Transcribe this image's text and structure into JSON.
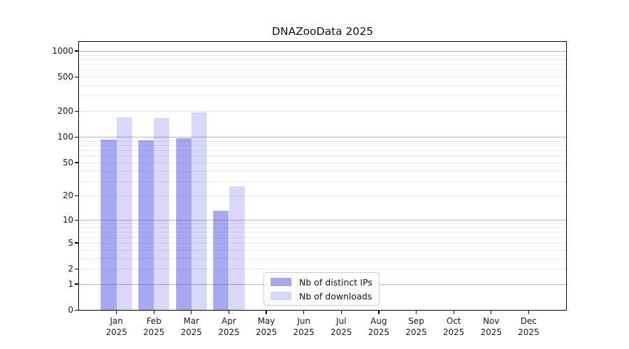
{
  "header": {
    "title": "DNAZooData 2025"
  },
  "chart_data": {
    "type": "bar",
    "title": "DNAZooData 2025",
    "categories": [
      "Jan 2025",
      "Feb 2025",
      "Mar 2025",
      "Apr 2025",
      "May 2025",
      "Jun 2025",
      "Jul 2025",
      "Aug 2025",
      "Sep 2025",
      "Oct 2025",
      "Nov 2025",
      "Dec 2025"
    ],
    "series": [
      {
        "name": "Nb of distinct IPs",
        "base_color": "#4d51e2",
        "alpha": 0.5,
        "values": [
          93,
          91,
          96,
          13,
          null,
          null,
          null,
          null,
          null,
          null,
          null,
          null
        ]
      },
      {
        "name": "Nb of downloads",
        "base_color": "#4d51e2",
        "alpha": 0.22,
        "values": [
          170,
          165,
          193,
          26,
          null,
          null,
          null,
          null,
          null,
          null,
          null,
          null
        ]
      }
    ],
    "yscale": "log1p",
    "ylim": [
      0,
      1270
    ],
    "yticks": [
      0,
      1,
      2,
      5,
      10,
      20,
      50,
      100,
      200,
      500,
      1000
    ],
    "major_gridlines": [
      1,
      10,
      100,
      1000
    ],
    "grid": true,
    "legend_position": "inside-bottom-center",
    "colors": {
      "bar_distinct_ips": "#a6a8f1",
      "bar_downloads": "#d8d9fa",
      "grid_major": "#b2b2b2",
      "grid_minor": "#e9e9e9",
      "axis": "#000000",
      "legend_border": "#cccccc",
      "text": "#1a1a1a"
    }
  }
}
